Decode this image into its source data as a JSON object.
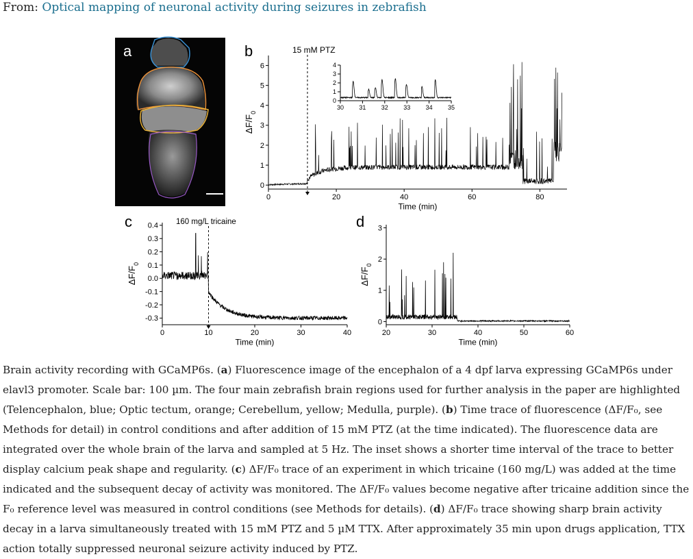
{
  "header": {
    "from_label": "From:",
    "article_title": "Optical mapping of neuronal activity during seizures in zebrafish"
  },
  "panels": {
    "a": {
      "label": "a"
    },
    "b": {
      "label": "b",
      "annotation": "15 mM PTZ"
    },
    "c": {
      "label": "c",
      "annotation": "160 mg/L tricaine"
    },
    "d": {
      "label": "d"
    }
  },
  "colors": {
    "link": "#1a6e8e",
    "telencephalon": "#3a8fd0",
    "optic_tectum": "#e8903a",
    "cerebellum": "#e8b23a",
    "medulla": "#9a5ac8"
  },
  "chart_data": [
    {
      "id": "b",
      "type": "line",
      "xlabel": "Time (min)",
      "ylabel": "ΔF/F0",
      "xlim": [
        0,
        88
      ],
      "ylim": [
        -0.2,
        6.5
      ],
      "xticks": [
        0,
        20,
        40,
        60,
        80
      ],
      "yticks": [
        0,
        1,
        2,
        3,
        4,
        5,
        6
      ],
      "event_x": 11.5,
      "inset": {
        "xlim": [
          30,
          35
        ],
        "ylim": [
          0,
          4
        ],
        "xticks": [
          30,
          31,
          32,
          33,
          34,
          35
        ],
        "yticks": [
          0,
          1,
          2,
          3,
          4
        ],
        "peaks": [
          30.6,
          31.3,
          31.6,
          31.9,
          32.5,
          33.0,
          33.7,
          34.3
        ],
        "peak_heights": [
          1.8,
          0.9,
          1.1,
          2.0,
          2.1,
          1.5,
          1.2,
          2.0
        ]
      }
    },
    {
      "id": "c",
      "type": "line",
      "xlabel": "Time (min)",
      "ylabel": "ΔF/F0",
      "xlim": [
        0,
        40
      ],
      "ylim": [
        -0.35,
        0.42
      ],
      "xticks": [
        0,
        10,
        20,
        30,
        40
      ],
      "yticks": [
        -0.3,
        -0.2,
        -0.1,
        0.0,
        0.1,
        0.2,
        0.3,
        0.4
      ],
      "event_x": 10
    },
    {
      "id": "d",
      "type": "line",
      "xlabel": "Time (min)",
      "ylabel": "ΔF/F0",
      "xlim": [
        20,
        60
      ],
      "ylim": [
        -0.1,
        3.1
      ],
      "xticks": [
        20,
        30,
        40,
        50,
        60
      ],
      "yticks": [
        0,
        1,
        2,
        3
      ]
    }
  ],
  "caption": {
    "s1": "Brain activity recording with GCaMP6s. (",
    "a": "a",
    "s2": ") Fluorescence image of the encephalon of a 4 dpf larva expressing GCaMP6s under elavl3 promoter. Scale bar: 100 µm. The four main zebrafish brain regions used for further analysis in the paper are highlighted (Telencephalon, blue; Optic tectum, orange; Cerebellum, yellow; Medulla, purple). (",
    "b": "b",
    "s3": ") Time trace of fluorescence (ΔF/F₀, see Methods for detail) in control conditions and after addition of 15 mM PTZ (at the time indicated). The fluorescence data are integrated over the whole brain of the larva and sampled at 5 Hz. The inset shows a shorter time interval of the trace to better display calcium peak shape and regularity. (",
    "c": "c",
    "s4": ") ΔF/F₀ trace of an experiment in which tricaine (160 mg/L) was added at the time indicated and the subsequent decay of activity was monitored. The ΔF/F₀ values become negative after tricaine addition since the F₀ reference level was measured in control conditions (see Methods for details). (",
    "d": "d",
    "s5": ") ΔF/F₀ trace showing sharp brain activity decay in a larva simultaneously treated with 15 mM PTZ and 5 µM TTX. After approximately 35 min upon drugs application, TTX action totally suppressed neuronal seizure activity induced by PTZ."
  }
}
